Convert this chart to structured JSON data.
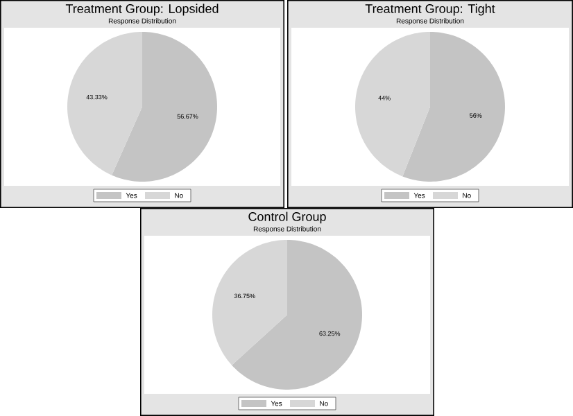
{
  "chart_data": [
    {
      "type": "pie",
      "title": "Treatment Group: Lopsided",
      "subtitle": "Response Distribution",
      "categories": [
        "Yes",
        "No"
      ],
      "values": [
        56.67,
        43.33
      ],
      "colors": [
        "#c4c4c4",
        "#d7d7d7"
      ],
      "value_labels": [
        "56.67%",
        "43.33%"
      ],
      "legend": "bottom"
    },
    {
      "type": "pie",
      "title": "Treatment Group: Tight",
      "subtitle": "Response Distribution",
      "categories": [
        "Yes",
        "No"
      ],
      "values": [
        56,
        44
      ],
      "colors": [
        "#c4c4c4",
        "#d7d7d7"
      ],
      "value_labels": [
        "56%",
        "44%"
      ],
      "legend": "bottom"
    },
    {
      "type": "pie",
      "title": "Control Group",
      "subtitle": "Response Distribution",
      "categories": [
        "Yes",
        "No"
      ],
      "values": [
        63.25,
        36.75
      ],
      "colors": [
        "#c4c4c4",
        "#d7d7d7"
      ],
      "value_labels": [
        "63.25%",
        "36.75%"
      ],
      "legend": "bottom"
    }
  ]
}
